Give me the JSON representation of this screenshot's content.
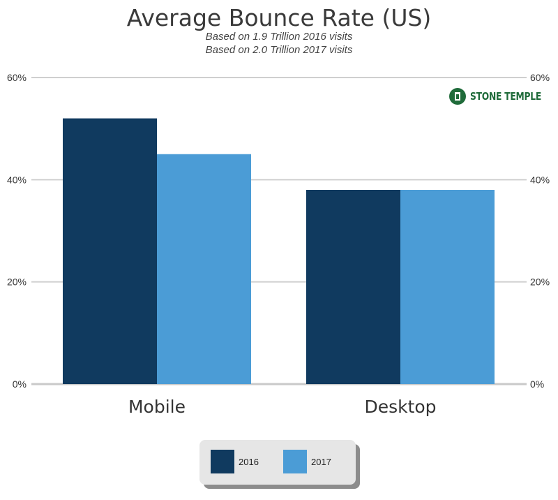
{
  "chart_data": {
    "type": "bar",
    "title": "Average Bounce Rate (US)",
    "subtitle_lines": [
      "Based on 1.9 Trillion 2016 visits",
      "Based on 2.0 Trillion 2017 visits"
    ],
    "categories": [
      "Mobile",
      "Desktop"
    ],
    "series": [
      {
        "name": "2016",
        "values": [
          52,
          38
        ],
        "color": "#103a5f"
      },
      {
        "name": "2017",
        "values": [
          45,
          38
        ],
        "color": "#4b9cd6"
      }
    ],
    "ylim": [
      0,
      60
    ],
    "yticks": [
      "0%",
      "20%",
      "40%",
      "60%"
    ],
    "ytick_values": [
      0,
      20,
      40,
      60
    ],
    "grid": true,
    "legend_position": "bottom-center",
    "logo_text": "STONE TEMPLE"
  }
}
